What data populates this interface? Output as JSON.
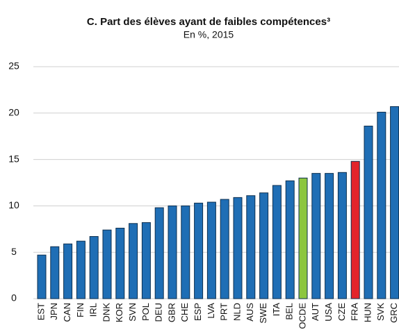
{
  "chart_data": {
    "type": "bar",
    "title": "C. Part des élèves ayant de faibles compétences³",
    "subtitle": "En %, 2015",
    "categories": [
      "EST",
      "JPN",
      "CAN",
      "FIN",
      "IRL",
      "DNK",
      "KOR",
      "SVN",
      "POL",
      "DEU",
      "GBR",
      "CHE",
      "ESP",
      "LVA",
      "PRT",
      "NLD",
      "AUS",
      "SWE",
      "ITA",
      "BEL",
      "OCDE",
      "AUT",
      "USA",
      "CZE",
      "FRA",
      "HUN",
      "SVK",
      "GRC"
    ],
    "values": [
      4.7,
      5.6,
      5.9,
      6.2,
      6.7,
      7.4,
      7.6,
      8.1,
      8.2,
      9.8,
      10.0,
      10.0,
      10.3,
      10.4,
      10.7,
      10.9,
      11.1,
      11.4,
      12.2,
      12.7,
      13.0,
      13.5,
      13.5,
      13.6,
      14.8,
      18.6,
      20.1,
      20.7
    ],
    "colors": [
      "#1f6eb5",
      "#1f6eb5",
      "#1f6eb5",
      "#1f6eb5",
      "#1f6eb5",
      "#1f6eb5",
      "#1f6eb5",
      "#1f6eb5",
      "#1f6eb5",
      "#1f6eb5",
      "#1f6eb5",
      "#1f6eb5",
      "#1f6eb5",
      "#1f6eb5",
      "#1f6eb5",
      "#1f6eb5",
      "#1f6eb5",
      "#1f6eb5",
      "#1f6eb5",
      "#1f6eb5",
      "#8cc63f",
      "#1f6eb5",
      "#1f6eb5",
      "#1f6eb5",
      "#e3242b",
      "#1f6eb5",
      "#1f6eb5",
      "#1f6eb5"
    ],
    "ylim": [
      0,
      25
    ],
    "yticks": [
      0,
      5,
      10,
      15,
      20,
      25
    ],
    "grid": true
  }
}
